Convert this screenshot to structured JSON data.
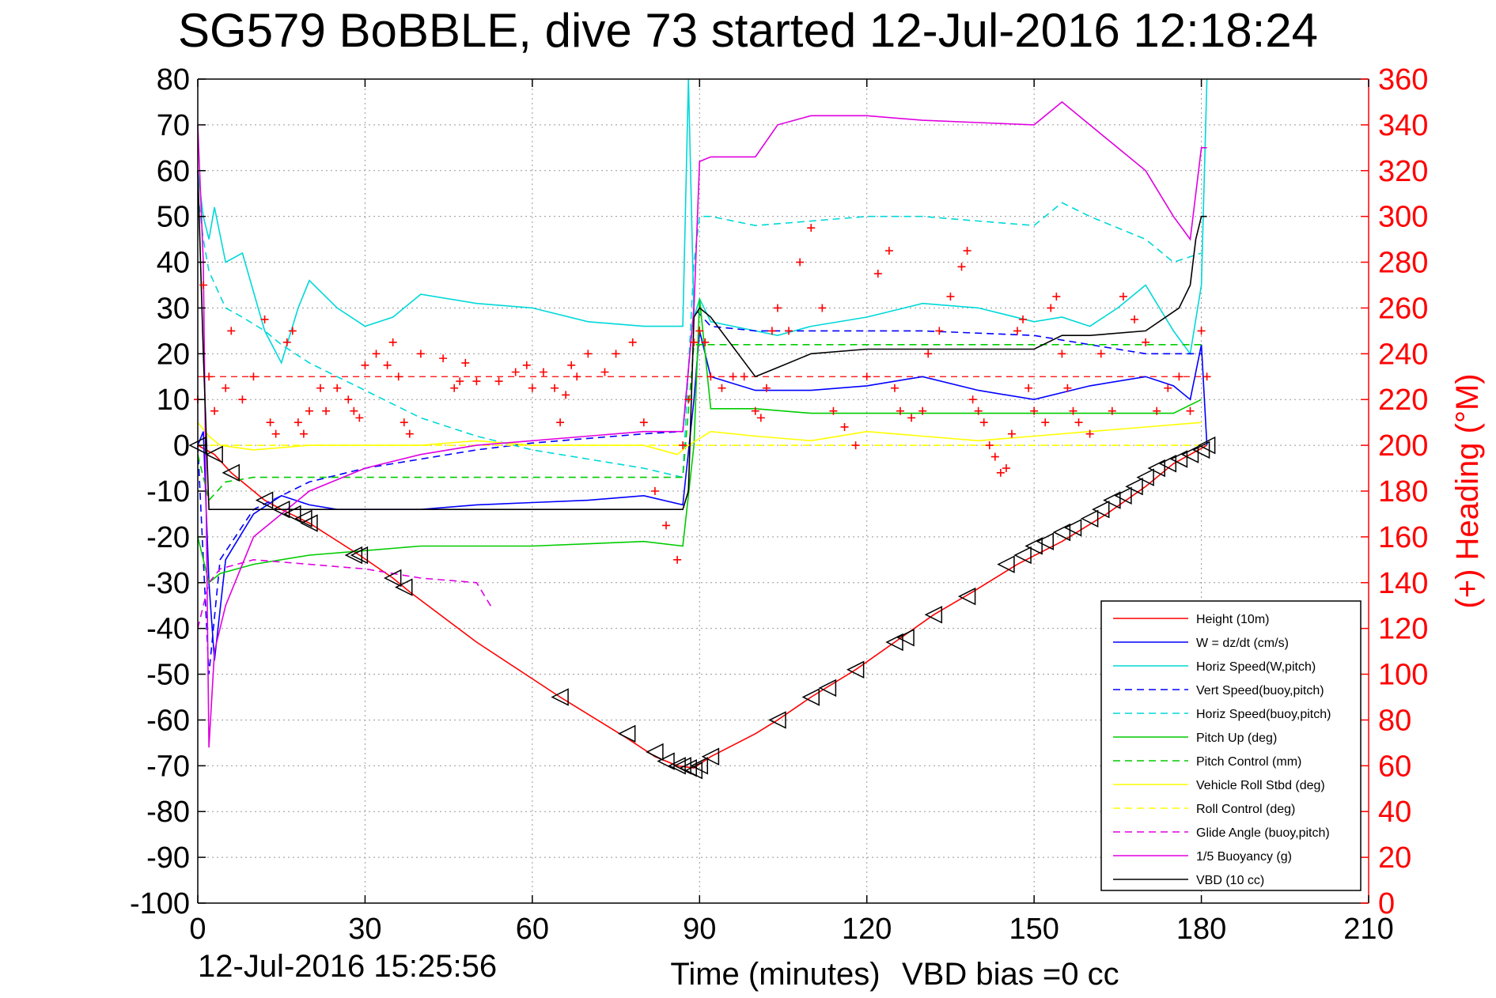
{
  "chart_data": {
    "type": "line",
    "title": "SG579 BoBBLE, dive 73 started 12-Jul-2016 12:18:24",
    "xlabel": "Time (minutes)",
    "ylabel": "",
    "y2label": "(+) Heading (°M)",
    "xlim": [
      0,
      210
    ],
    "ylim": [
      -100,
      80
    ],
    "y2lim": [
      0,
      360
    ],
    "xticks": [
      0,
      30,
      60,
      90,
      120,
      150,
      180,
      210
    ],
    "yticks": [
      -100,
      -90,
      -80,
      -70,
      -60,
      -50,
      -40,
      -30,
      -20,
      -10,
      0,
      10,
      20,
      30,
      40,
      50,
      60,
      70,
      80
    ],
    "y2ticks": [
      0,
      20,
      40,
      60,
      80,
      100,
      120,
      140,
      160,
      180,
      200,
      220,
      240,
      260,
      280,
      300,
      320,
      340,
      360
    ],
    "grid": true,
    "legend_position": "bottom-right",
    "footer_left": "12-Jul-2016 15:25:56",
    "footer_right": "VBD bias =0 cc",
    "colors": {
      "axis_right": "#ff0000",
      "grid": "#999999"
    },
    "series": [
      {
        "name": "Height (10m)",
        "color": "#ff0000",
        "dash": "solid",
        "x": [
          0,
          3,
          6,
          12,
          15,
          20,
          29,
          35,
          38,
          50,
          65,
          77,
          82,
          86,
          89,
          92,
          100,
          104,
          110,
          118,
          125,
          132,
          139,
          147,
          155,
          163,
          170,
          175,
          181
        ],
        "y": [
          0,
          -2,
          -6,
          -12,
          -14,
          -17,
          -24,
          -29,
          -32,
          -43,
          -55,
          -64,
          -68,
          -70,
          -70.5,
          -68,
          -63,
          -60,
          -55,
          -49,
          -43,
          -37,
          -32,
          -26,
          -21,
          -15,
          -9,
          -4,
          0
        ]
      },
      {
        "name": "W = dz/dt (cm/s)",
        "color": "#0000ff",
        "dash": "solid",
        "x": [
          0,
          1,
          2,
          3,
          5,
          10,
          15,
          20,
          25,
          30,
          40,
          50,
          60,
          70,
          80,
          87,
          89,
          90,
          92,
          100,
          110,
          120,
          130,
          140,
          150,
          160,
          170,
          175,
          178,
          180,
          181
        ],
        "y": [
          0,
          3,
          -30,
          -47,
          -25,
          -15,
          -11,
          -13,
          -14,
          -14,
          -14,
          -13,
          -12.5,
          -12,
          -11,
          -13,
          10,
          25,
          15,
          12,
          12,
          13,
          15,
          12,
          10,
          13,
          15,
          13,
          10,
          22,
          0
        ]
      },
      {
        "name": "Horiz Speed(W,pitch)",
        "color": "#00d8d8",
        "dash": "solid",
        "x": [
          0,
          1,
          2,
          3,
          5,
          8,
          12,
          15,
          18,
          20,
          25,
          30,
          35,
          40,
          50,
          60,
          70,
          80,
          87,
          88,
          89,
          90,
          92,
          100,
          104,
          110,
          120,
          130,
          140,
          150,
          155,
          160,
          165,
          170,
          175,
          178,
          180,
          181
        ],
        "y": [
          60,
          50,
          45,
          52,
          40,
          42,
          25,
          18,
          30,
          36,
          30,
          26,
          28,
          33,
          31,
          30,
          27,
          26,
          26,
          80,
          28,
          32,
          27,
          25,
          24,
          26,
          28,
          31,
          30,
          27,
          28,
          26,
          30,
          35,
          25,
          20,
          35,
          80
        ]
      },
      {
        "name": "Vert Speed(buoy,pitch)",
        "color": "#0000ff",
        "dash": "dashed",
        "x": [
          0,
          2,
          4,
          10,
          20,
          30,
          40,
          50,
          60,
          70,
          80,
          87,
          89,
          92,
          100,
          110,
          130,
          150,
          160,
          170,
          180
        ],
        "y": [
          0,
          -50,
          -25,
          -14,
          -8,
          -5,
          -3,
          -1,
          0.5,
          1.5,
          2.5,
          3,
          30,
          26,
          25,
          25,
          25,
          24,
          22,
          20,
          20
        ]
      },
      {
        "name": "Horiz Speed(buoy,pitch)",
        "color": "#00d8d8",
        "dash": "dashed",
        "x": [
          0,
          1,
          2,
          5,
          8,
          12,
          15,
          20,
          25,
          30,
          40,
          50,
          60,
          70,
          80,
          87,
          89,
          90,
          92,
          100,
          110,
          120,
          130,
          140,
          150,
          155,
          160,
          170,
          175,
          180
        ],
        "y": [
          55,
          45,
          38,
          30,
          28,
          25,
          22,
          18,
          15,
          12,
          6,
          2,
          -1,
          -3,
          -5,
          -7,
          40,
          50,
          50,
          48,
          49,
          50,
          50,
          49,
          48,
          53,
          50,
          45,
          40,
          42
        ]
      },
      {
        "name": "Pitch Up (deg)",
        "color": "#00cc00",
        "dash": "solid",
        "x": [
          0,
          2,
          4,
          10,
          20,
          30,
          40,
          60,
          80,
          87,
          89,
          90,
          92,
          100,
          110,
          120,
          130,
          140,
          150,
          160,
          170,
          175,
          180
        ],
        "y": [
          -20,
          -30,
          -28,
          -26,
          -24,
          -23,
          -22,
          -22,
          -21,
          -22,
          0,
          32,
          8,
          8,
          7,
          7,
          7,
          7,
          7,
          7,
          7,
          7,
          10
        ]
      },
      {
        "name": "Pitch Control (mm)",
        "color": "#00cc00",
        "dash": "dashed",
        "x": [
          0,
          2,
          5,
          10,
          20,
          30,
          40,
          60,
          80,
          87,
          89,
          90,
          92,
          100,
          110,
          120,
          130,
          140,
          150,
          160,
          170,
          180
        ],
        "y": [
          -2,
          -12,
          -8,
          -7,
          -7,
          -7,
          -7,
          -7,
          -7,
          -7,
          22,
          22,
          22,
          22,
          22,
          22,
          22,
          22,
          22,
          22,
          22,
          22
        ]
      },
      {
        "name": "Vehicle Roll Stbd (deg)",
        "color": "#ffff00",
        "dash": "solid",
        "x": [
          0,
          2,
          4,
          10,
          20,
          30,
          40,
          50,
          60,
          70,
          80,
          86,
          88,
          92,
          100,
          110,
          120,
          130,
          140,
          150,
          160,
          170,
          180
        ],
        "y": [
          5,
          2,
          0,
          -1,
          0,
          0,
          0,
          1,
          0,
          0,
          0,
          -2,
          0,
          3,
          2,
          1,
          3,
          2,
          1,
          2,
          3,
          4,
          5
        ]
      },
      {
        "name": "Roll Control (deg)",
        "color": "#ffff00",
        "dash": "dashed",
        "x": [
          0,
          10,
          20,
          30,
          40,
          50,
          60,
          70,
          80,
          90,
          100,
          110,
          120,
          130,
          140,
          150,
          160,
          170,
          180
        ],
        "y": [
          0,
          0,
          0,
          0,
          0,
          0,
          0,
          0,
          0,
          0,
          0,
          0,
          0,
          0,
          0,
          0,
          0,
          0,
          0
        ]
      },
      {
        "name": "Glide Angle (buoy,pitch)",
        "color": "#e000e0",
        "dash": "dashed",
        "x": [
          0,
          2,
          4,
          10,
          20,
          30,
          40,
          50,
          53
        ],
        "y": [
          -40,
          -30,
          -27,
          -25,
          -26,
          -27,
          -29,
          -30,
          -36
        ]
      },
      {
        "name": "1/5 Buoyancy (g)",
        "color": "#e000e0",
        "dash": "solid",
        "x": [
          0,
          1,
          2,
          3,
          5,
          10,
          20,
          30,
          40,
          50,
          60,
          70,
          80,
          87,
          89,
          90,
          92,
          100,
          104,
          110,
          120,
          130,
          140,
          150,
          155,
          160,
          170,
          175,
          178,
          180,
          181
        ],
        "y": [
          70,
          40,
          -66,
          -45,
          -35,
          -20,
          -10,
          -5,
          -2,
          0,
          1,
          2,
          3,
          3,
          30,
          62,
          63,
          63,
          70,
          72,
          72,
          71,
          70.5,
          70,
          75,
          70,
          60,
          50,
          45,
          65,
          65
        ]
      },
      {
        "name": "VBD (10 cc)",
        "color": "#000000",
        "dash": "solid",
        "x": [
          0,
          1,
          2,
          87,
          88,
          89,
          90,
          92,
          100,
          104,
          110,
          120,
          130,
          140,
          150,
          155,
          160,
          170,
          176,
          178,
          179,
          180,
          181
        ],
        "y": [
          60,
          20,
          -14,
          -14,
          -10,
          28,
          30,
          28,
          15,
          17,
          20,
          21,
          21,
          21,
          21,
          24,
          24,
          25,
          30,
          35,
          45,
          50,
          50
        ]
      }
    ],
    "heading_series": {
      "name": "Heading",
      "color": "#ff0000",
      "marker": "+",
      "axis": "right",
      "x": [
        0,
        1,
        2,
        3,
        5,
        6,
        8,
        10,
        12,
        13,
        14,
        16,
        17,
        18,
        19,
        20,
        22,
        23,
        25,
        27,
        28,
        29,
        30,
        32,
        34,
        35,
        36,
        37,
        38,
        40,
        44,
        46,
        47,
        48,
        50,
        54,
        57,
        59,
        60,
        62,
        64,
        65,
        66,
        67,
        68,
        70,
        73,
        75,
        78,
        80,
        82,
        84,
        86,
        87,
        88,
        89,
        90,
        91,
        92,
        94,
        96,
        98,
        100,
        101,
        102,
        103,
        104,
        106,
        108,
        110,
        112,
        114,
        116,
        118,
        120,
        122,
        124,
        125,
        126,
        128,
        130,
        131,
        133,
        135,
        137,
        138,
        139,
        140,
        141,
        142,
        143,
        144,
        145,
        146,
        147,
        148,
        149,
        150,
        152,
        153,
        154,
        155,
        156,
        157,
        158,
        160,
        162,
        164,
        166,
        168,
        170,
        172,
        174,
        176,
        178,
        180,
        181
      ],
      "y": [
        220,
        270,
        230,
        215,
        225,
        250,
        220,
        230,
        255,
        210,
        205,
        245,
        250,
        210,
        205,
        215,
        225,
        215,
        225,
        220,
        215,
        212,
        235,
        240,
        235,
        245,
        230,
        210,
        205,
        240,
        238,
        225,
        228,
        236,
        228,
        228,
        232,
        235,
        225,
        232,
        225,
        210,
        222,
        235,
        230,
        240,
        232,
        240,
        245,
        210,
        180,
        165,
        150,
        200,
        220,
        245,
        250,
        245,
        230,
        225,
        230,
        230,
        215,
        212,
        225,
        250,
        260,
        250,
        280,
        295,
        260,
        215,
        208,
        200,
        230,
        275,
        285,
        225,
        215,
        212,
        215,
        240,
        250,
        265,
        278,
        285,
        220,
        215,
        210,
        200,
        195,
        188,
        190,
        205,
        250,
        255,
        225,
        215,
        210,
        260,
        265,
        240,
        225,
        215,
        210,
        205,
        240,
        215,
        265,
        255,
        245,
        215,
        225,
        230,
        215,
        250,
        230
      ],
      "reference_line": 230
    },
    "markers": {
      "series": "Height (10m)",
      "color": "#000000",
      "x": [
        0,
        3,
        6,
        12,
        15,
        17,
        19,
        20,
        28,
        29,
        35,
        37,
        65,
        77,
        82,
        84,
        86,
        87,
        88,
        89,
        90,
        92,
        104,
        110,
        113,
        118,
        125,
        127,
        132,
        138,
        145,
        148,
        150,
        152,
        155,
        157,
        160,
        162,
        164,
        166,
        168,
        170,
        172,
        174,
        176,
        178,
        180,
        181
      ],
      "y": [
        0,
        -2,
        -6,
        -12,
        -14,
        -15,
        -16,
        -17,
        -24,
        -24,
        -29,
        -31,
        -55,
        -63,
        -67,
        -69,
        -70,
        -70,
        -70.5,
        -71,
        -70,
        -68,
        -60,
        -55,
        -53,
        -49,
        -43,
        -42,
        -37,
        -33,
        -26,
        -24,
        -22,
        -21,
        -19,
        -18,
        -16,
        -14,
        -12,
        -11,
        -9,
        -7,
        -5,
        -4,
        -3,
        -2,
        -1,
        0
      ]
    },
    "legend": [
      "Height (10m)",
      "W = dz/dt (cm/s)",
      "Horiz Speed(W,pitch)",
      "Vert Speed(buoy,pitch)",
      "Horiz Speed(buoy,pitch)",
      "Pitch Up (deg)",
      "Pitch Control (mm)",
      "Vehicle Roll Stbd (deg)",
      "Roll Control (deg)",
      "Glide Angle (buoy,pitch)",
      "1/5 Buoyancy (g)",
      "VBD (10 cc)"
    ]
  }
}
